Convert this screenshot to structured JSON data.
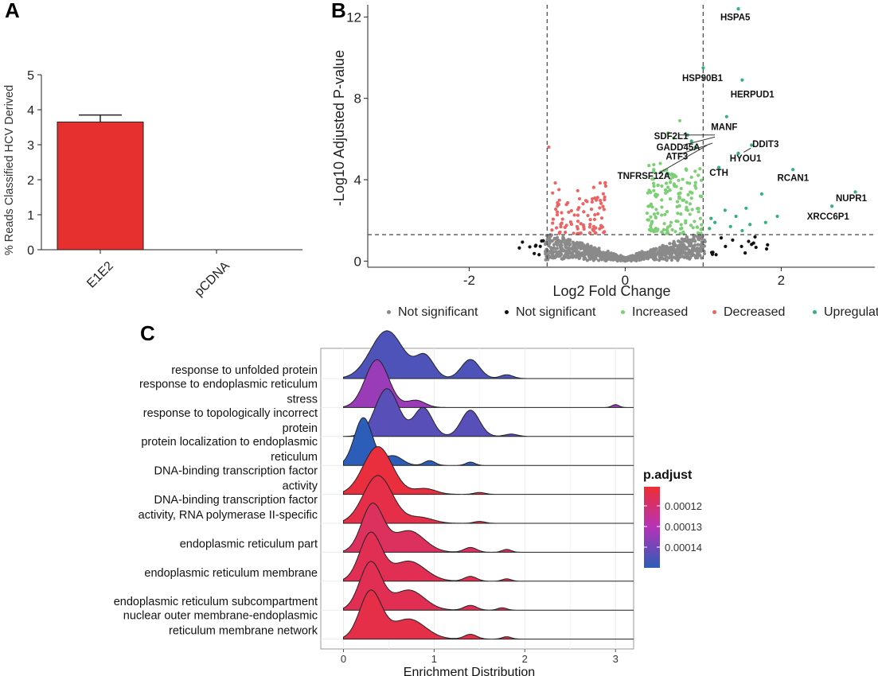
{
  "panels": {
    "a": "A",
    "b": "B",
    "c": "C"
  },
  "colors": {
    "bar": "#e63030",
    "grey": "#8a8a8a",
    "black": "#111111",
    "green_increased": "#7ccf74",
    "red_decreased": "#ef6262",
    "green_upregulated": "#33b27a",
    "ridge_high": "#2c5db8",
    "ridge_mid": "#b533b8",
    "ridge_low": "#ee2e33"
  },
  "chart_data": [
    {
      "id": "A",
      "type": "bar",
      "ylabel": "% Reads Classified HCV Derived",
      "categories": [
        "E1E2",
        "pCDNA"
      ],
      "values": [
        3.65,
        0.0
      ],
      "error": [
        0.2,
        0.0
      ],
      "ylim": [
        0,
        5
      ],
      "yticks": [
        "0",
        "1",
        "2",
        "3",
        "4",
        "5"
      ]
    },
    {
      "id": "B",
      "type": "scatter",
      "title": "",
      "xlabel": "Log2 Fold Change",
      "ylabel": "-Log10 Adjusted P-value",
      "xlim": [
        -3.3,
        3.2
      ],
      "ylim": [
        -0.3,
        12.6
      ],
      "xticks": [
        "-2",
        "0",
        "2"
      ],
      "yticks": [
        "0",
        "4",
        "8",
        "12"
      ],
      "thresholds": {
        "fc": 1.0,
        "p": 1.3
      },
      "legend": [
        {
          "label": "Not significant",
          "color": "#8a8a8a"
        },
        {
          "label": "Not significant",
          "color": "#111111"
        },
        {
          "label": "Increased",
          "color": "#7ccf74"
        },
        {
          "label": "Decreased",
          "color": "#ef6262"
        },
        {
          "label": "Upregulated",
          "color": "#33b27a"
        }
      ],
      "genes": [
        {
          "label": "HSPA5",
          "x": 1.45,
          "y": 12.4
        },
        {
          "label": "HSP90B1",
          "x": 1.0,
          "y": 9.5
        },
        {
          "label": "HERPUD1",
          "x": 1.5,
          "y": 8.9
        },
        {
          "label": "MANF",
          "x": 1.3,
          "y": 7.1
        },
        {
          "label": "SDF2L1",
          "x": 0.8,
          "y": 6.2
        },
        {
          "label": "GADD45A",
          "x": 0.85,
          "y": 5.9
        },
        {
          "label": "ATF3",
          "x": 0.9,
          "y": 5.6
        },
        {
          "label": "TNFRSF12A",
          "x": 0.55,
          "y": 4.3
        },
        {
          "label": "DDIT3",
          "x": 1.62,
          "y": 5.7
        },
        {
          "label": "HYOU1",
          "x": 1.45,
          "y": 5.3
        },
        {
          "label": "CTH",
          "x": 1.2,
          "y": 4.6
        },
        {
          "label": "RCAN1",
          "x": 2.15,
          "y": 4.5
        },
        {
          "label": "NUPR1",
          "x": 2.95,
          "y": 3.4
        },
        {
          "label": "XRCC6P1",
          "x": 2.65,
          "y": 2.7
        }
      ]
    },
    {
      "id": "C",
      "type": "ridgeline",
      "xlabel": "Enrichment Distribution",
      "xlim": [
        -0.25,
        3.2
      ],
      "xticks": [
        "0",
        "1",
        "2",
        "3"
      ],
      "legend_title": "p.adjust",
      "legend_ticks": [
        "0.00012",
        "0.00013",
        "0.00014"
      ],
      "terms": [
        {
          "label": [
            "response to unfolded protein"
          ],
          "p_adjust": 0.000142,
          "peaks": [
            [
              0.48,
              0.18,
              1.0
            ],
            [
              0.9,
              0.1,
              0.45
            ],
            [
              1.4,
              0.1,
              0.4
            ],
            [
              1.8,
              0.07,
              0.08
            ]
          ]
        },
        {
          "label": [
            "response to endoplasmic reticulum",
            "stress"
          ],
          "p_adjust": 0.000135,
          "peaks": [
            [
              0.37,
              0.13,
              1.0
            ],
            [
              0.8,
              0.1,
              0.15
            ],
            [
              3.0,
              0.04,
              0.06
            ]
          ]
        },
        {
          "label": [
            "response to topologically incorrect",
            "protein"
          ],
          "p_adjust": 0.000141,
          "peaks": [
            [
              0.48,
              0.13,
              1.0
            ],
            [
              0.88,
              0.1,
              0.6
            ],
            [
              1.4,
              0.1,
              0.55
            ],
            [
              1.85,
              0.07,
              0.05
            ]
          ]
        },
        {
          "label": [
            "protein localization to endoplasmic",
            "reticulum"
          ],
          "p_adjust": 0.000145,
          "peaks": [
            [
              0.22,
              0.1,
              1.0
            ],
            [
              0.55,
              0.1,
              0.2
            ],
            [
              0.95,
              0.06,
              0.1
            ],
            [
              1.4,
              0.05,
              0.07
            ]
          ]
        },
        {
          "label": [
            "DNA-binding transcription factor",
            "activity"
          ],
          "p_adjust": 0.000121,
          "peaks": [
            [
              0.38,
              0.16,
              1.0
            ],
            [
              0.9,
              0.12,
              0.12
            ],
            [
              1.5,
              0.06,
              0.04
            ]
          ]
        },
        {
          "label": [
            "DNA-binding transcription factor",
            "activity, RNA polymerase II-specific"
          ],
          "p_adjust": 0.000122,
          "peaks": [
            [
              0.38,
              0.16,
              1.0
            ],
            [
              0.85,
              0.14,
              0.12
            ],
            [
              1.5,
              0.06,
              0.04
            ]
          ]
        },
        {
          "label": [
            "endoplasmic reticulum part"
          ],
          "p_adjust": 0.000124,
          "peaks": [
            [
              0.32,
              0.12,
              1.0
            ],
            [
              0.72,
              0.17,
              0.45
            ],
            [
              1.4,
              0.07,
              0.1
            ],
            [
              1.8,
              0.05,
              0.06
            ]
          ]
        },
        {
          "label": [
            "endoplasmic reticulum membrane"
          ],
          "p_adjust": 0.000123,
          "peaks": [
            [
              0.3,
              0.12,
              1.0
            ],
            [
              0.72,
              0.18,
              0.42
            ],
            [
              1.4,
              0.07,
              0.1
            ],
            [
              1.8,
              0.05,
              0.05
            ]
          ]
        },
        {
          "label": [
            "endoplasmic reticulum subcompartment"
          ],
          "p_adjust": 0.000123,
          "peaks": [
            [
              0.3,
              0.12,
              1.0
            ],
            [
              0.72,
              0.17,
              0.42
            ],
            [
              1.4,
              0.07,
              0.1
            ],
            [
              1.75,
              0.05,
              0.05
            ]
          ]
        },
        {
          "label": [
            "nuclear outer membrane-endoplasmic",
            "reticulum membrane network"
          ],
          "p_adjust": 0.000122,
          "peaks": [
            [
              0.3,
              0.12,
              1.0
            ],
            [
              0.72,
              0.18,
              0.42
            ],
            [
              1.4,
              0.07,
              0.1
            ],
            [
              1.8,
              0.05,
              0.05
            ]
          ]
        }
      ]
    }
  ]
}
